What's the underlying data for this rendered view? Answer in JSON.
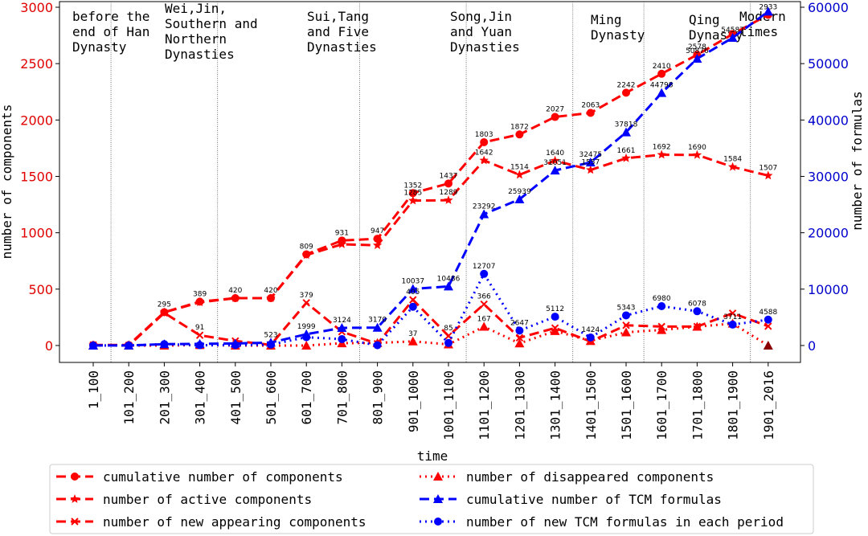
{
  "chart_data": {
    "type": "line",
    "xlabel": "time",
    "ylabel_left": "number of components",
    "ylabel_right": "number of formulas",
    "categories": [
      "1_100",
      "101_200",
      "201_300",
      "301_400",
      "401_500",
      "501_600",
      "601_700",
      "701_800",
      "801_900",
      "901_1000",
      "1001_1100",
      "1101_1200",
      "1201_1300",
      "1301_1400",
      "1401_1500",
      "1501_1600",
      "1601_1700",
      "1701_1800",
      "1801_1900",
      "1901_2016"
    ],
    "ylim_left": [
      -150,
      3050
    ],
    "yticks_left": [
      0,
      500,
      1000,
      1500,
      2000,
      2500,
      3000
    ],
    "ylim_right": [
      -3000,
      61000
    ],
    "yticks_right": [
      0,
      10000,
      20000,
      30000,
      40000,
      50000,
      60000
    ],
    "eras": [
      {
        "lines": [
          "before the",
          "end of Han",
          "Dynasty"
        ]
      },
      {
        "lines": [
          "Wei,Jin,",
          "Southern and",
          "Northern",
          "Dynasties"
        ]
      },
      {
        "lines": [
          "Sui,Tang",
          "and Five",
          "Dynasties"
        ]
      },
      {
        "lines": [
          "Song,Jin",
          "and Yuan",
          "Dynasties"
        ]
      },
      {
        "lines": [
          "Ming",
          "Dynasty"
        ]
      },
      {
        "lines": [
          "Qing",
          "Dynasty"
        ]
      },
      {
        "lines": [
          "Modern",
          "times"
        ]
      }
    ],
    "era_boundaries": [
      0.5,
      3.5,
      7.5,
      10.5,
      13.5,
      15.5,
      18.5
    ],
    "series": [
      {
        "name": "cumulative number of components",
        "axis": "left",
        "color": "#ff0000",
        "dash": "dashed",
        "marker": "circle",
        "values": [
          4,
          4,
          295,
          389,
          420,
          420,
          809,
          931,
          947,
          1352,
          1437,
          1803,
          1872,
          2027,
          2063,
          2242,
          2410,
          2578,
          2762,
          2933
        ]
      },
      {
        "name": "number of active components",
        "axis": "left",
        "color": "#ff0000",
        "dash": "dashed",
        "marker": "star",
        "values": [
          4,
          4,
          295,
          383,
          420,
          420,
          802,
          898,
          889,
          1285,
          1289,
          1642,
          1514,
          1640,
          1557,
          1661,
          1692,
          1690,
          1584,
          1507
        ]
      },
      {
        "name": "number of new appearing components",
        "axis": "left",
        "color": "#ff0000",
        "dash": "dashed",
        "marker": "x",
        "values": [
          4,
          0,
          289,
          91,
          40,
          6,
          379,
          122,
          16,
          405,
          85,
          366,
          69,
          155,
          36,
          179,
          168,
          168,
          286,
          171
        ]
      },
      {
        "name": "number of disappeared components",
        "axis": "left",
        "color": "#ff0000",
        "dash": "dotted",
        "marker": "triangle",
        "values": [
          0,
          0,
          0,
          4,
          0,
          0,
          0,
          20,
          23,
          37,
          10,
          167,
          19,
          129,
          41,
          117,
          138,
          167,
          195,
          0
        ]
      },
      {
        "name": "cumulative number of TCM formulas",
        "axis": "right",
        "color": "#0000ff",
        "dash": "dashed",
        "marker": "triangle",
        "values": [
          1,
          3,
          242,
          299,
          360,
          523,
          1999,
          3124,
          3170,
          10037,
          10486,
          23292,
          25939,
          31051,
          32475,
          37818,
          44798,
          50876,
          54587,
          59232
        ]
      },
      {
        "name": "number of new TCM formulas in each period",
        "axis": "right",
        "color": "#0000ff",
        "dash": "dotted",
        "marker": "circle",
        "values": [
          1,
          2,
          239,
          57,
          61,
          163,
          1476,
          1125,
          46,
          6867,
          449,
          12707,
          2647,
          5112,
          1424,
          5343,
          6980,
          6078,
          3711,
          4588
        ]
      }
    ],
    "labels": [
      {
        "s": 0,
        "i": 2,
        "t": "295"
      },
      {
        "s": 0,
        "i": 3,
        "t": "389"
      },
      {
        "s": 0,
        "i": 4,
        "t": "420"
      },
      {
        "s": 0,
        "i": 5,
        "t": "420"
      },
      {
        "s": 0,
        "i": 6,
        "t": "809"
      },
      {
        "s": 0,
        "i": 7,
        "t": "931"
      },
      {
        "s": 0,
        "i": 8,
        "t": "947"
      },
      {
        "s": 0,
        "i": 9,
        "t": "1352"
      },
      {
        "s": 0,
        "i": 10,
        "t": "1437"
      },
      {
        "s": 0,
        "i": 11,
        "t": "1803"
      },
      {
        "s": 0,
        "i": 12,
        "t": "1872"
      },
      {
        "s": 0,
        "i": 13,
        "t": "2027"
      },
      {
        "s": 0,
        "i": 14,
        "t": "2063"
      },
      {
        "s": 0,
        "i": 15,
        "t": "2242"
      },
      {
        "s": 0,
        "i": 16,
        "t": "2410"
      },
      {
        "s": 0,
        "i": 17,
        "t": "2578"
      },
      {
        "s": 0,
        "i": 19,
        "t": "2933"
      },
      {
        "s": 1,
        "i": 9,
        "t": "1285"
      },
      {
        "s": 1,
        "i": 10,
        "t": "1289"
      },
      {
        "s": 1,
        "i": 11,
        "t": "1642"
      },
      {
        "s": 1,
        "i": 12,
        "t": "1514"
      },
      {
        "s": 1,
        "i": 13,
        "t": "1640"
      },
      {
        "s": 1,
        "i": 14,
        "t": "1557"
      },
      {
        "s": 1,
        "i": 15,
        "t": "1661"
      },
      {
        "s": 1,
        "i": 16,
        "t": "1692"
      },
      {
        "s": 1,
        "i": 17,
        "t": "1690"
      },
      {
        "s": 1,
        "i": 18,
        "t": "1584"
      },
      {
        "s": 1,
        "i": 19,
        "t": "1507"
      },
      {
        "s": 2,
        "i": 6,
        "t": "379"
      },
      {
        "s": 2,
        "i": 3,
        "t": "91"
      },
      {
        "s": 2,
        "i": 9,
        "t": "405"
      },
      {
        "s": 2,
        "i": 10,
        "t": "85"
      },
      {
        "s": 2,
        "i": 11,
        "t": "366"
      },
      {
        "s": 3,
        "i": 11,
        "t": "167"
      },
      {
        "s": 3,
        "i": 9,
        "t": "37"
      },
      {
        "s": 4,
        "i": 5,
        "t": "523"
      },
      {
        "s": 4,
        "i": 6,
        "t": "1999"
      },
      {
        "s": 4,
        "i": 7,
        "t": "3124"
      },
      {
        "s": 4,
        "i": 8,
        "t": "3170"
      },
      {
        "s": 4,
        "i": 9,
        "t": "10037"
      },
      {
        "s": 4,
        "i": 10,
        "t": "10486"
      },
      {
        "s": 4,
        "i": 11,
        "t": "23292"
      },
      {
        "s": 4,
        "i": 12,
        "t": "25939"
      },
      {
        "s": 4,
        "i": 13,
        "t": "31051"
      },
      {
        "s": 4,
        "i": 14,
        "t": "32475"
      },
      {
        "s": 4,
        "i": 15,
        "t": "37818"
      },
      {
        "s": 4,
        "i": 16,
        "t": "44798"
      },
      {
        "s": 4,
        "i": 17,
        "t": "50876"
      },
      {
        "s": 4,
        "i": 18,
        "t": "54587"
      },
      {
        "s": 5,
        "i": 11,
        "t": "12707"
      },
      {
        "s": 5,
        "i": 13,
        "t": "5112"
      },
      {
        "s": 5,
        "i": 15,
        "t": "5343"
      },
      {
        "s": 5,
        "i": 16,
        "t": "6980"
      },
      {
        "s": 5,
        "i": 17,
        "t": "6078"
      },
      {
        "s": 5,
        "i": 12,
        "t": "2647"
      },
      {
        "s": 5,
        "i": 14,
        "t": "1424"
      },
      {
        "s": 5,
        "i": 18,
        "t": "3711"
      },
      {
        "s": 5,
        "i": 19,
        "t": "4588"
      }
    ]
  }
}
